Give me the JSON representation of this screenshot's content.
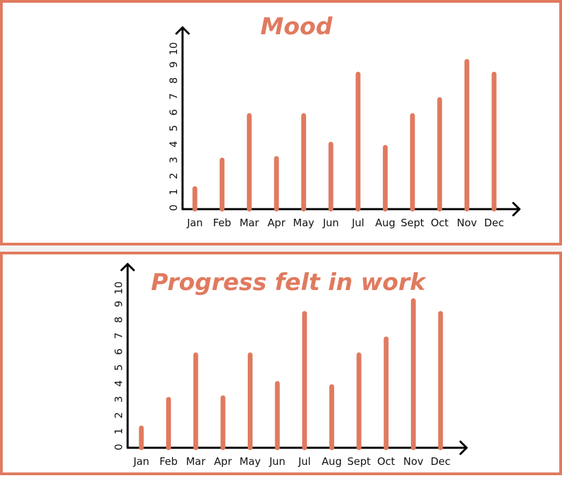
{
  "colors": {
    "bar": "#E07A5F",
    "border": "#E07A5F",
    "axis": "#000000"
  },
  "chart_data": [
    {
      "type": "bar",
      "title": "Mood",
      "categories": [
        "Jan",
        "Feb",
        "Mar",
        "Apr",
        "May",
        "Jun",
        "Jul",
        "Aug",
        "Sept",
        "Oct",
        "Nov",
        "Dec"
      ],
      "values": [
        1.2,
        3,
        5.8,
        3.1,
        5.8,
        4,
        8.4,
        3.8,
        5.8,
        6.8,
        9.2,
        8.4
      ],
      "yticks": [
        "0",
        "1",
        "2",
        "3",
        "4",
        "5",
        "6",
        "7",
        "8",
        "9",
        "10"
      ],
      "ylim": [
        0,
        10
      ],
      "xlabel": "",
      "ylabel": "",
      "grid": false
    },
    {
      "type": "bar",
      "title": "Progress felt in work",
      "categories": [
        "Jan",
        "Feb",
        "Mar",
        "Apr",
        "May",
        "Jun",
        "Jul",
        "Aug",
        "Sept",
        "Oct",
        "Nov",
        "Dec"
      ],
      "values": [
        1.2,
        3,
        5.8,
        3.1,
        5.8,
        4,
        8.4,
        3.8,
        5.8,
        6.8,
        9.2,
        8.4
      ],
      "yticks": [
        "0",
        "1",
        "2",
        "3",
        "4",
        "5",
        "6",
        "7",
        "8",
        "9",
        "10"
      ],
      "ylim": [
        0,
        10
      ],
      "xlabel": "",
      "ylabel": "",
      "grid": false
    }
  ]
}
